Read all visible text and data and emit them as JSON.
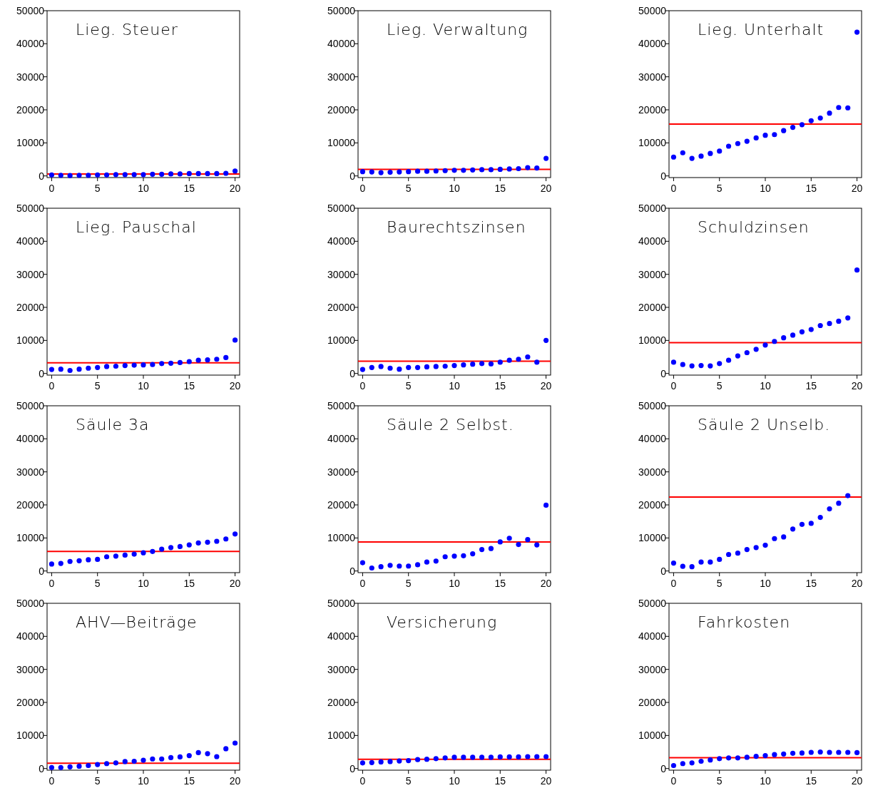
{
  "chart_data": [
    {
      "type": "scatter",
      "title": "Lieg. Steuer",
      "x": [
        0,
        1,
        2,
        3,
        4,
        5,
        6,
        7,
        8,
        9,
        10,
        11,
        12,
        13,
        14,
        15,
        16,
        17,
        18,
        19,
        20
      ],
      "values": [
        300,
        200,
        100,
        200,
        200,
        300,
        300,
        400,
        400,
        400,
        400,
        500,
        500,
        600,
        600,
        700,
        700,
        700,
        700,
        800,
        1500
      ],
      "color": "#0000ff",
      "marker": "circle",
      "xlim": [
        -0.5,
        20.5
      ],
      "ylim": [
        -500,
        50000
      ],
      "xticks": [
        0,
        5,
        10,
        15,
        20
      ],
      "yticks": [
        0,
        10000,
        20000,
        30000,
        40000,
        50000
      ],
      "grid": false,
      "ref_lines": [
        {
          "axis": "y",
          "value": 600,
          "color": "#ff0000"
        }
      ]
    },
    {
      "type": "scatter",
      "title": "Lieg. Verwaltung",
      "x": [
        0,
        1,
        2,
        3,
        4,
        5,
        6,
        7,
        8,
        9,
        10,
        11,
        12,
        13,
        14,
        15,
        16,
        17,
        18,
        19,
        20
      ],
      "values": [
        1300,
        1200,
        1000,
        1100,
        1200,
        1300,
        1400,
        1400,
        1500,
        1600,
        1700,
        1700,
        1800,
        1900,
        1900,
        2000,
        2100,
        2200,
        2500,
        2400,
        5300
      ],
      "color": "#0000ff",
      "marker": "circle",
      "xlim": [
        -0.5,
        20.5
      ],
      "ylim": [
        -500,
        50000
      ],
      "xticks": [
        0,
        5,
        10,
        15,
        20
      ],
      "yticks": [
        0,
        10000,
        20000,
        30000,
        40000,
        50000
      ],
      "grid": false,
      "ref_lines": [
        {
          "axis": "y",
          "value": 2000,
          "color": "#ff0000"
        }
      ]
    },
    {
      "type": "scatter",
      "title": "Lieg. Unterhalt",
      "x": [
        0,
        1,
        2,
        3,
        4,
        5,
        6,
        7,
        8,
        9,
        10,
        11,
        12,
        13,
        14,
        15,
        16,
        17,
        18,
        19,
        20
      ],
      "values": [
        5700,
        7000,
        5300,
        6000,
        6800,
        7500,
        9000,
        9800,
        10500,
        11500,
        12300,
        12500,
        13700,
        14700,
        15500,
        16700,
        17500,
        19000,
        20700,
        20600,
        43500
      ],
      "color": "#0000ff",
      "marker": "circle",
      "xlim": [
        -0.5,
        20.5
      ],
      "ylim": [
        -500,
        50000
      ],
      "xticks": [
        0,
        5,
        10,
        15,
        20
      ],
      "yticks": [
        0,
        10000,
        20000,
        30000,
        40000,
        50000
      ],
      "grid": false,
      "ref_lines": [
        {
          "axis": "y",
          "value": 15700,
          "color": "#ff0000"
        }
      ]
    },
    {
      "type": "scatter",
      "title": "Lieg. Pauschal",
      "x": [
        0,
        1,
        2,
        3,
        4,
        5,
        6,
        7,
        8,
        9,
        10,
        11,
        12,
        13,
        14,
        15,
        16,
        17,
        18,
        19,
        20
      ],
      "values": [
        1200,
        1300,
        900,
        1300,
        1600,
        1800,
        2100,
        2200,
        2400,
        2500,
        2600,
        2700,
        3000,
        3100,
        3300,
        3600,
        4000,
        4100,
        4300,
        4800,
        10100
      ],
      "color": "#0000ff",
      "marker": "circle",
      "xlim": [
        -0.5,
        20.5
      ],
      "ylim": [
        -500,
        50000
      ],
      "xticks": [
        0,
        5,
        10,
        15,
        20
      ],
      "yticks": [
        0,
        10000,
        20000,
        30000,
        40000,
        50000
      ],
      "grid": false,
      "ref_lines": [
        {
          "axis": "y",
          "value": 3200,
          "color": "#ff0000"
        }
      ]
    },
    {
      "type": "scatter",
      "title": "Baurechtszinsen",
      "x": [
        0,
        1,
        2,
        3,
        4,
        5,
        6,
        7,
        8,
        9,
        10,
        11,
        12,
        13,
        14,
        15,
        16,
        17,
        18,
        19,
        20
      ],
      "values": [
        1200,
        1800,
        2100,
        1600,
        1300,
        1800,
        1800,
        2000,
        2100,
        2200,
        2400,
        2600,
        2800,
        3000,
        2900,
        3400,
        4000,
        4300,
        5000,
        3400,
        10000
      ],
      "color": "#0000ff",
      "marker": "circle",
      "xlim": [
        -0.5,
        20.5
      ],
      "ylim": [
        -500,
        50000
      ],
      "xticks": [
        0,
        5,
        10,
        15,
        20
      ],
      "yticks": [
        0,
        10000,
        20000,
        30000,
        40000,
        50000
      ],
      "grid": false,
      "ref_lines": [
        {
          "axis": "y",
          "value": 3700,
          "color": "#ff0000"
        }
      ]
    },
    {
      "type": "scatter",
      "title": "Schuldzinsen",
      "x": [
        0,
        1,
        2,
        3,
        4,
        5,
        6,
        7,
        8,
        9,
        10,
        11,
        12,
        13,
        14,
        15,
        16,
        17,
        18,
        19,
        20
      ],
      "values": [
        3400,
        2700,
        2300,
        2400,
        2300,
        3000,
        4000,
        5300,
        6300,
        7300,
        8600,
        9700,
        10800,
        11600,
        12600,
        13300,
        14500,
        15100,
        15800,
        16800,
        31300
      ],
      "color": "#0000ff",
      "marker": "circle",
      "xlim": [
        -0.5,
        20.5
      ],
      "ylim": [
        -500,
        50000
      ],
      "xticks": [
        0,
        5,
        10,
        15,
        20
      ],
      "yticks": [
        0,
        10000,
        20000,
        30000,
        40000,
        50000
      ],
      "grid": false,
      "ref_lines": [
        {
          "axis": "y",
          "value": 9300,
          "color": "#ff0000"
        }
      ]
    },
    {
      "type": "scatter",
      "title": "Säule 3a",
      "x": [
        0,
        1,
        2,
        3,
        4,
        5,
        6,
        7,
        8,
        9,
        10,
        11,
        12,
        13,
        14,
        15,
        16,
        17,
        18,
        19,
        20
      ],
      "values": [
        2100,
        2300,
        2900,
        3100,
        3400,
        3500,
        4300,
        4500,
        4800,
        5100,
        5500,
        5900,
        6600,
        7100,
        7400,
        7900,
        8500,
        8700,
        9000,
        9700,
        11200
      ],
      "color": "#0000ff",
      "marker": "circle",
      "xlim": [
        -0.5,
        20.5
      ],
      "ylim": [
        -500,
        50000
      ],
      "xticks": [
        0,
        5,
        10,
        15,
        20
      ],
      "yticks": [
        0,
        10000,
        20000,
        30000,
        40000,
        50000
      ],
      "grid": false,
      "ref_lines": [
        {
          "axis": "y",
          "value": 5900,
          "color": "#ff0000"
        }
      ]
    },
    {
      "type": "scatter",
      "title": "Säule 2 Selbst.",
      "x": [
        0,
        1,
        2,
        3,
        4,
        5,
        6,
        7,
        8,
        9,
        10,
        11,
        12,
        13,
        14,
        15,
        16,
        17,
        18,
        19,
        20
      ],
      "values": [
        2500,
        900,
        1300,
        1700,
        1500,
        1500,
        1900,
        2700,
        3000,
        4300,
        4500,
        4600,
        5200,
        6500,
        6800,
        8800,
        9900,
        8000,
        9500,
        7900,
        19900
      ],
      "color": "#0000ff",
      "marker": "circle",
      "xlim": [
        -0.5,
        20.5
      ],
      "ylim": [
        -500,
        50000
      ],
      "xticks": [
        0,
        5,
        10,
        15,
        20
      ],
      "yticks": [
        0,
        10000,
        20000,
        30000,
        40000,
        50000
      ],
      "grid": false,
      "ref_lines": [
        {
          "axis": "y",
          "value": 8800,
          "color": "#ff0000"
        }
      ]
    },
    {
      "type": "scatter",
      "title": "Säule 2 Unselb.",
      "x": [
        0,
        1,
        2,
        3,
        4,
        5,
        6,
        7,
        8,
        9,
        10,
        11,
        12,
        13,
        14,
        15,
        16,
        17,
        18,
        19
      ],
      "values": [
        2400,
        1400,
        1300,
        2700,
        2700,
        3500,
        5000,
        5400,
        6500,
        7100,
        7800,
        9800,
        10300,
        12700,
        14100,
        14400,
        16200,
        18800,
        20500,
        22800
      ],
      "color": "#0000ff",
      "marker": "circle",
      "xlim": [
        -0.5,
        20.5
      ],
      "ylim": [
        -500,
        50000
      ],
      "xticks": [
        0,
        5,
        10,
        15,
        20
      ],
      "yticks": [
        0,
        10000,
        20000,
        30000,
        40000,
        50000
      ],
      "grid": false,
      "ref_lines": [
        {
          "axis": "y",
          "value": 22400,
          "color": "#ff0000"
        }
      ]
    },
    {
      "type": "scatter",
      "title": "AHV—Beiträge",
      "x": [
        0,
        1,
        2,
        3,
        4,
        5,
        6,
        7,
        8,
        9,
        10,
        11,
        12,
        13,
        14,
        15,
        16,
        17,
        18,
        19,
        20
      ],
      "values": [
        300,
        300,
        500,
        700,
        900,
        1200,
        1500,
        1700,
        2100,
        2200,
        2500,
        2900,
        2900,
        3300,
        3500,
        3900,
        4800,
        4500,
        3600,
        6000,
        7700
      ],
      "color": "#0000ff",
      "marker": "circle",
      "xlim": [
        -0.5,
        20.5
      ],
      "ylim": [
        -500,
        50000
      ],
      "xticks": [
        0,
        5,
        10,
        15,
        20
      ],
      "yticks": [
        0,
        10000,
        20000,
        30000,
        40000,
        50000
      ],
      "grid": false,
      "ref_lines": [
        {
          "axis": "y",
          "value": 1600,
          "color": "#ff0000"
        }
      ]
    },
    {
      "type": "scatter",
      "title": "Versicherung",
      "x": [
        0,
        1,
        2,
        3,
        4,
        5,
        6,
        7,
        8,
        9,
        10,
        11,
        12,
        13,
        14,
        15,
        16,
        17,
        18,
        19,
        20
      ],
      "values": [
        1700,
        1800,
        2000,
        2100,
        2300,
        2400,
        2700,
        2800,
        3000,
        3200,
        3400,
        3400,
        3400,
        3400,
        3400,
        3500,
        3500,
        3500,
        3600,
        3600,
        3600
      ],
      "color": "#0000ff",
      "marker": "circle",
      "xlim": [
        -0.5,
        20.5
      ],
      "ylim": [
        -500,
        50000
      ],
      "xticks": [
        0,
        5,
        10,
        15,
        20
      ],
      "yticks": [
        0,
        10000,
        20000,
        30000,
        40000,
        50000
      ],
      "grid": false,
      "ref_lines": [
        {
          "axis": "y",
          "value": 2800,
          "color": "#ff0000"
        }
      ]
    },
    {
      "type": "scatter",
      "title": "Fahrkosten",
      "x": [
        0,
        1,
        2,
        3,
        4,
        5,
        6,
        7,
        8,
        9,
        10,
        11,
        12,
        13,
        14,
        15,
        16,
        17,
        18,
        19,
        20
      ],
      "values": [
        900,
        1500,
        1700,
        2200,
        2600,
        3000,
        3200,
        3200,
        3400,
        3700,
        3900,
        4200,
        4400,
        4600,
        4700,
        4900,
        5000,
        4900,
        4900,
        4900,
        4800
      ],
      "color": "#0000ff",
      "marker": "circle",
      "xlim": [
        -0.5,
        20.5
      ],
      "ylim": [
        -500,
        50000
      ],
      "xticks": [
        0,
        5,
        10,
        15,
        20
      ],
      "yticks": [
        0,
        10000,
        20000,
        30000,
        40000,
        50000
      ],
      "grid": false,
      "ref_lines": [
        {
          "axis": "y",
          "value": 3300,
          "color": "#ff0000"
        }
      ]
    }
  ]
}
